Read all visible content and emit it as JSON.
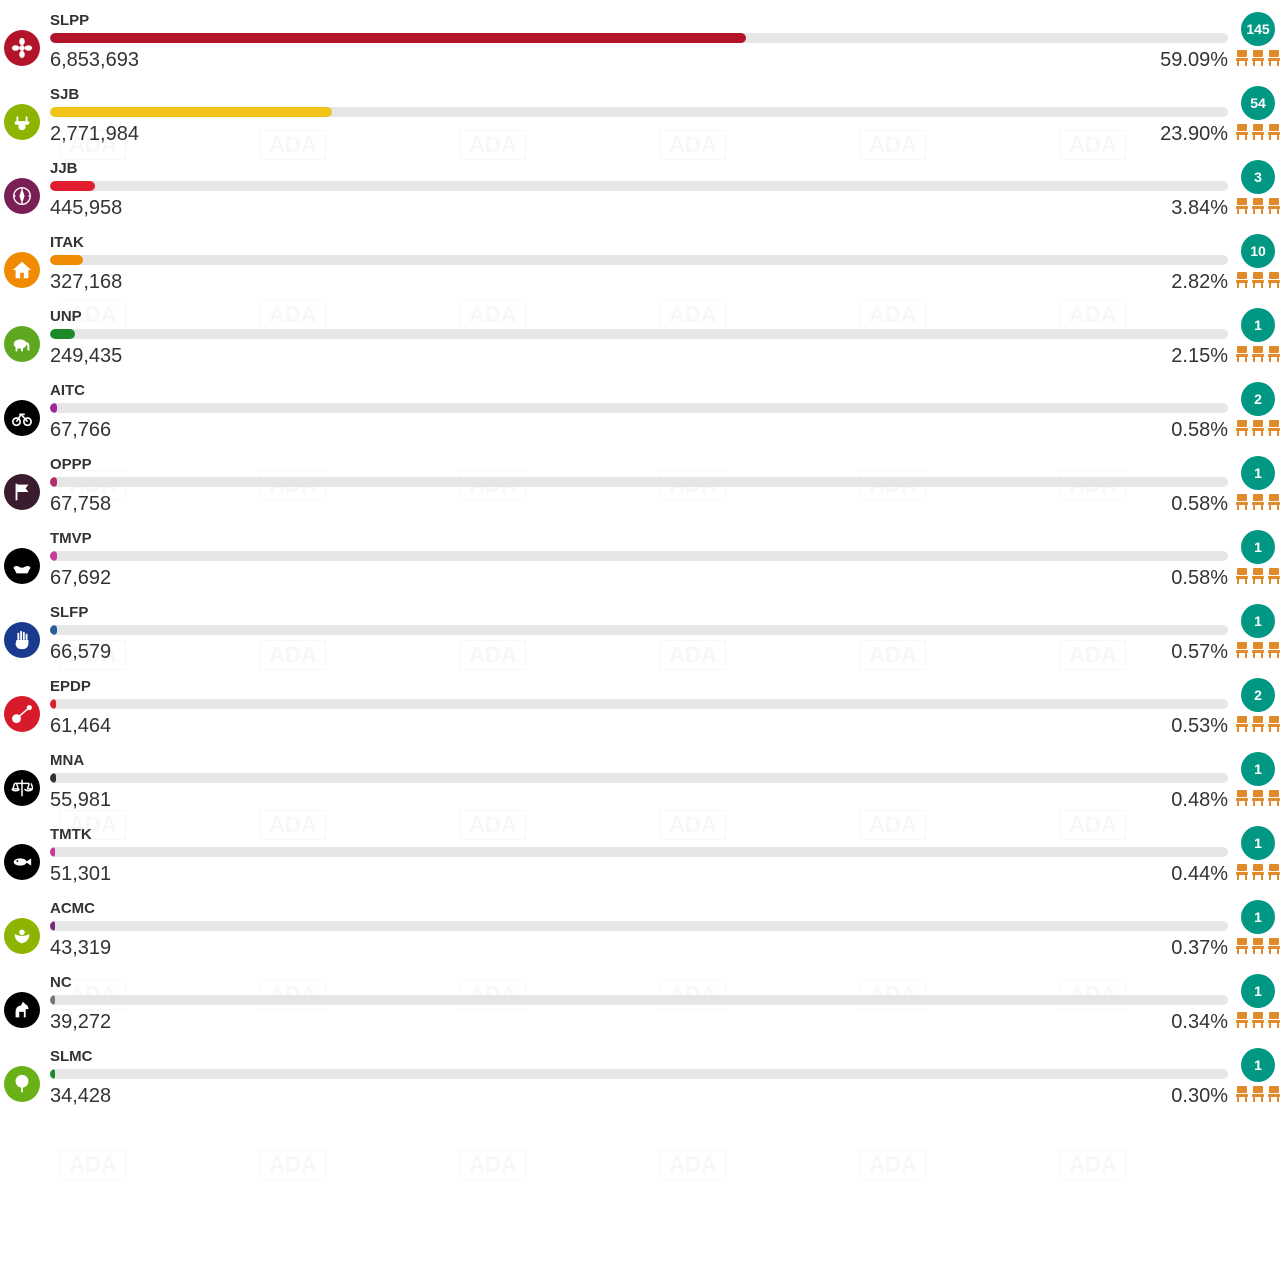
{
  "seat_badge_color": "#009882",
  "chair_color": "#e08a2c",
  "bar_track_color": "#e6e6e6",
  "max_percent": 100,
  "chairs_per_row": 3,
  "parties": [
    {
      "code": "SLPP",
      "votes": "6,853,693",
      "percent": "59.09%",
      "pct_num": 59.09,
      "seats": "145",
      "bar_color": "#b2152a",
      "icon_bg": "#b2152a",
      "icon": "flower"
    },
    {
      "code": "SJB",
      "votes": "2,771,984",
      "percent": "23.90%",
      "pct_num": 23.9,
      "seats": "54",
      "bar_color": "#f0c419",
      "icon_bg": "#8cb400",
      "icon": "phone"
    },
    {
      "code": "JJB",
      "votes": "445,958",
      "percent": "3.84%",
      "pct_num": 3.84,
      "seats": "3",
      "bar_color": "#e01e2d",
      "icon_bg": "#7a1e56",
      "icon": "compass"
    },
    {
      "code": "ITAK",
      "votes": "327,168",
      "percent": "2.82%",
      "pct_num": 2.82,
      "seats": "10",
      "bar_color": "#f08a00",
      "icon_bg": "#f08a00",
      "icon": "house"
    },
    {
      "code": "UNP",
      "votes": "249,435",
      "percent": "2.15%",
      "pct_num": 2.15,
      "seats": "1",
      "bar_color": "#1d8a2a",
      "icon_bg": "#5da81e",
      "icon": "elephant"
    },
    {
      "code": "AITC",
      "votes": "67,766",
      "percent": "0.58%",
      "pct_num": 0.58,
      "seats": "2",
      "bar_color": "#9b2a9b",
      "icon_bg": "#000000",
      "icon": "bicycle"
    },
    {
      "code": "OPPP",
      "votes": "67,758",
      "percent": "0.58%",
      "pct_num": 0.58,
      "seats": "1",
      "bar_color": "#b52a6b",
      "icon_bg": "#3a1c2e",
      "icon": "flag"
    },
    {
      "code": "TMVP",
      "votes": "67,692",
      "percent": "0.58%",
      "pct_num": 0.58,
      "seats": "1",
      "bar_color": "#c73a9b",
      "icon_bg": "#000000",
      "icon": "boat"
    },
    {
      "code": "SLFP",
      "votes": "66,579",
      "percent": "0.57%",
      "pct_num": 0.57,
      "seats": "1",
      "bar_color": "#2a5ca0",
      "icon_bg": "#1a3a8f",
      "icon": "hand"
    },
    {
      "code": "EPDP",
      "votes": "61,464",
      "percent": "0.53%",
      "pct_num": 0.53,
      "seats": "2",
      "bar_color": "#e01e2d",
      "icon_bg": "#d81b2a",
      "icon": "veena"
    },
    {
      "code": "MNA",
      "votes": "55,981",
      "percent": "0.48%",
      "pct_num": 0.48,
      "seats": "1",
      "bar_color": "#333333",
      "icon_bg": "#000000",
      "icon": "scales"
    },
    {
      "code": "TMTK",
      "votes": "51,301",
      "percent": "0.44%",
      "pct_num": 0.44,
      "seats": "1",
      "bar_color": "#c73a9b",
      "icon_bg": "#000000",
      "icon": "fish"
    },
    {
      "code": "ACMC",
      "votes": "43,319",
      "percent": "0.37%",
      "pct_num": 0.37,
      "seats": "1",
      "bar_color": "#7a2a7a",
      "icon_bg": "#8cb400",
      "icon": "peacock"
    },
    {
      "code": "NC",
      "votes": "39,272",
      "percent": "0.34%",
      "pct_num": 0.34,
      "seats": "1",
      "bar_color": "#777777",
      "icon_bg": "#000000",
      "icon": "horse"
    },
    {
      "code": "SLMC",
      "votes": "34,428",
      "percent": "0.30%",
      "pct_num": 0.3,
      "seats": "1",
      "bar_color": "#1d8a2a",
      "icon_bg": "#6ab017",
      "icon": "tree"
    }
  ]
}
